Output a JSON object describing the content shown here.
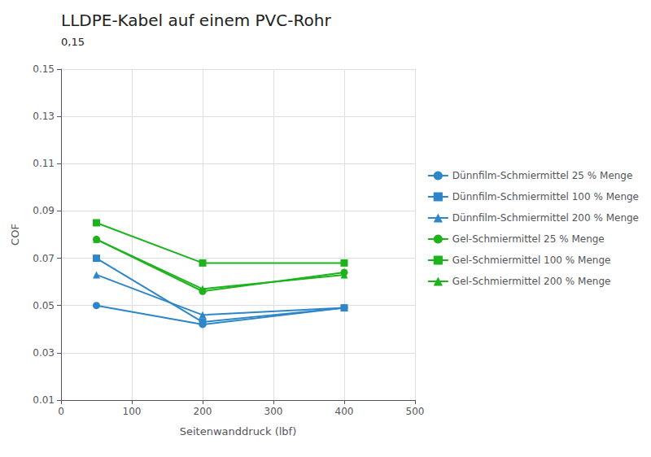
{
  "chart_data": {
    "type": "line",
    "title": "LLDPE-Kabel auf einem PVC-Rohr",
    "subtitle": "0,15",
    "xlabel": "Seitenwanddruck (lbf)",
    "ylabel": "COF",
    "x": [
      50,
      200,
      400
    ],
    "xlim": [
      0,
      500
    ],
    "xticks": [
      0,
      100,
      200,
      300,
      400,
      500
    ],
    "ylim": [
      0.01,
      0.15
    ],
    "yticks": [
      0.01,
      0.03,
      0.05,
      0.07,
      0.09,
      0.11,
      0.13,
      0.15
    ],
    "grid": true,
    "legend": "right",
    "series": [
      {
        "name": "Dünnfilm-Schmiermittel 25 % Menge",
        "color": "#2e86c8",
        "marker": "circle",
        "line_style": "solid",
        "values": [
          0.05,
          0.042,
          0.049
        ]
      },
      {
        "name": "Dünnfilm-Schmiermittel 100 % Menge",
        "color": "#2e86c8",
        "marker": "square",
        "line_style": "solid",
        "values": [
          0.07,
          0.043,
          0.049
        ]
      },
      {
        "name": "Dünnfilm-Schmiermittel 200 % Menge",
        "color": "#2e86c8",
        "marker": "triangle",
        "line_style": "solid",
        "values": [
          0.063,
          0.046,
          0.049
        ]
      },
      {
        "name": "Gel-Schmiermittel 25 % Menge",
        "color": "#1db31d",
        "marker": "circle",
        "line_style": "solid",
        "values": [
          0.078,
          0.056,
          0.064
        ]
      },
      {
        "name": "Gel-Schmiermittel 100 % Menge",
        "color": "#1db31d",
        "marker": "square",
        "line_style": "solid",
        "values": [
          0.085,
          0.068,
          0.068
        ]
      },
      {
        "name": "Gel-Schmiermittel 200 % Menge",
        "color": "#1db31d",
        "marker": "triangle",
        "line_style": "solid",
        "values": [
          0.078,
          0.057,
          0.063
        ]
      }
    ]
  }
}
